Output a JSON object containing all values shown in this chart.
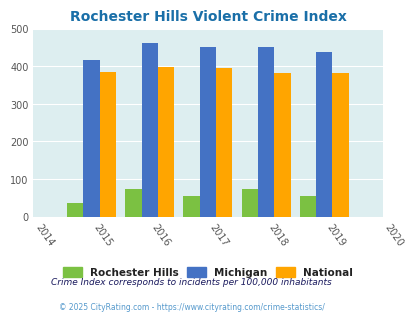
{
  "title": "Rochester Hills Violent Crime Index",
  "years": [
    2015,
    2016,
    2017,
    2018,
    2019
  ],
  "rochester_hills": [
    35,
    73,
    55,
    73,
    55
  ],
  "michigan": [
    415,
    462,
    452,
    452,
    438
  ],
  "national": [
    384,
    398,
    394,
    382,
    381
  ],
  "bar_colors": {
    "rochester_hills": "#7bc142",
    "michigan": "#4472c4",
    "national": "#ffa500"
  },
  "xlim": [
    2014,
    2020
  ],
  "ylim": [
    0,
    500
  ],
  "yticks": [
    0,
    100,
    200,
    300,
    400,
    500
  ],
  "xticks": [
    2014,
    2015,
    2016,
    2017,
    2018,
    2019,
    2020
  ],
  "bg_color": "#ddeef0",
  "title_color": "#1a6fa8",
  "legend_labels": [
    "Rochester Hills",
    "Michigan",
    "National"
  ],
  "footnote1": "Crime Index corresponds to incidents per 100,000 inhabitants",
  "footnote2": "© 2025 CityRating.com - https://www.cityrating.com/crime-statistics/",
  "bar_width": 0.28
}
